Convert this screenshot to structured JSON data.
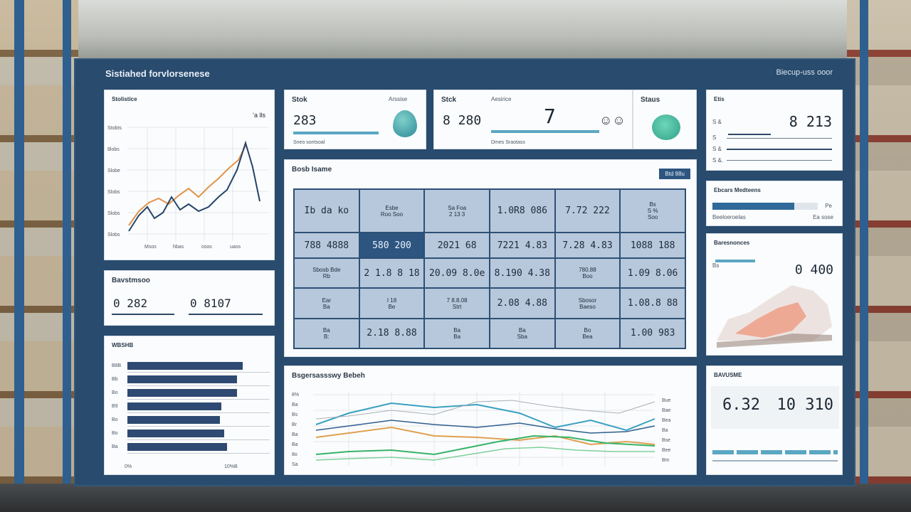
{
  "dashboard": {
    "title": "Sistiahed forvlorsenese",
    "header_right": "Biecup-uss ooor"
  },
  "cards": {
    "line_card": {
      "title": "Stolistice",
      "legend": "ʻa lls",
      "x_ticks": [
        "Msos",
        "hbas",
        "osos",
        "uaos"
      ],
      "y_ticks": [
        "Stobts",
        "8lobs",
        "Slobe",
        "Slobs",
        "Slobs",
        "Slobs"
      ]
    },
    "stat1": {
      "title": "Stok",
      "label2": "Arssise",
      "value": "283",
      "foot": "Sneo sontsoal"
    },
    "stat2": {
      "title": "Stck",
      "label2": "Aesirice",
      "value": "8 280",
      "big2": "7",
      "foot": "Dmes Sraotass"
    },
    "stat3": {
      "title": "Staus"
    },
    "kpi_right": {
      "title": "Etis",
      "value": "8 213",
      "rows": [
        "S &",
        "S",
        "S &",
        "S &."
      ]
    },
    "bars_right": {
      "title": "Ebcars Medteens",
      "left_label": "Beeloeroelas",
      "right_label": "Ea sose",
      "right_label2": "Pe",
      "fraction": 0.78
    },
    "map_card": {
      "title": "Baresnonces",
      "label": "Bs",
      "value": "0 400"
    },
    "bars_small": {
      "title": "Bavstmsoo",
      "v1": "0 282",
      "v2": "0 8107"
    },
    "hbar_card": {
      "title": "WBSHB",
      "labels": [
        "B8B",
        "Bb",
        "Bo",
        "B9",
        "Bo",
        "Bo",
        "Ba"
      ],
      "values": [
        0.81,
        0.77,
        0.77,
        0.66,
        0.65,
        0.68,
        0.7
      ],
      "foot": [
        "0%",
        "10%B"
      ]
    },
    "table_card": {
      "title": "Bosb Isame",
      "button": "Btd 88u",
      "rows": [
        [
          "Ib da ko",
          "Esbe\nRoo Soo",
          "Sa Foa\n2  13  3",
          "1.0R8  086",
          "7.72  222",
          "Bs\nS  %\nSoo"
        ],
        [
          "788  4888",
          "580  200",
          "2021  68",
          "7221  4.83",
          "7.28  4.83",
          "1088  188"
        ],
        [
          "Sbosb  Bde\nRb",
          "2 1.8  8 18",
          "20.09  8.0e",
          "8.190  4.38",
          "780.88\nBoo",
          "1.09  8.06"
        ],
        [
          "Ear\nBa",
          "I 18\nBe",
          "7 8.8.08\nStrt",
          "2.08  4.88",
          "Sbosor\nBaeso",
          "1.08.8  88"
        ],
        [
          "Ba\nB:",
          "2.18  8.88",
          "Ba\nBa",
          "Ba\nSba",
          "Bo\nBea",
          "1.00  983"
        ]
      ]
    },
    "multi_line": {
      "title": "Bsgersassswy Bebeh",
      "y_ticks": [
        "8%",
        "Ba",
        "Bs",
        "Br",
        "Ba",
        "Ba",
        "8o",
        "Sa"
      ],
      "legend": [
        "Bue",
        "Bae",
        "Bea",
        "Ba",
        "Bse",
        "Bee",
        "Bm"
      ]
    },
    "final_kpi": {
      "title": "BAVUSME",
      "v1": "6.32",
      "v2": "10 310"
    }
  },
  "colors": {
    "frame": "#284b6e",
    "accent": "#5aa7c2",
    "orange": "#e0944a",
    "navy": "#24446a",
    "green": "#36b36a",
    "teal": "#3aa0c0",
    "teal_icon": "#4fb5a8"
  }
}
